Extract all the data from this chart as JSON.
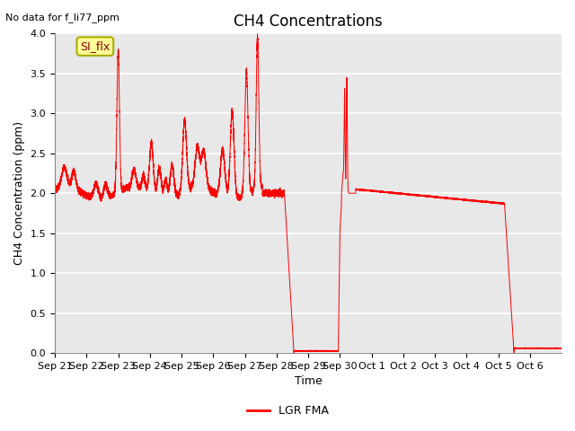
{
  "title": "CH4 Concentrations",
  "xlabel": "Time",
  "ylabel": "CH4 Concentration (ppm)",
  "top_left_text": "No data for f_li77_ppm",
  "legend_label": "LGR FMA",
  "line_color": "red",
  "ylim": [
    0.0,
    4.0
  ],
  "yticks": [
    0.0,
    0.5,
    1.0,
    1.5,
    2.0,
    2.5,
    3.0,
    3.5,
    4.0
  ],
  "xtick_labels": [
    "Sep 21",
    "Sep 22",
    "Sep 23",
    "Sep 24",
    "Sep 25",
    "Sep 26",
    "Sep 27",
    "Sep 28",
    "Sep 29",
    "Sep 30",
    "Oct 1",
    "Oct 2",
    "Oct 3",
    "Oct 4",
    "Oct 5",
    "Oct 6"
  ],
  "annotation_box_text": "SI_flx",
  "annotation_box_color": "#ffff99",
  "annotation_box_edge": "#aaaa00",
  "background_color": "#e8e8e8",
  "title_fontsize": 12,
  "axis_label_fontsize": 9,
  "tick_fontsize": 8,
  "figsize": [
    6.4,
    4.8
  ],
  "dpi": 100
}
